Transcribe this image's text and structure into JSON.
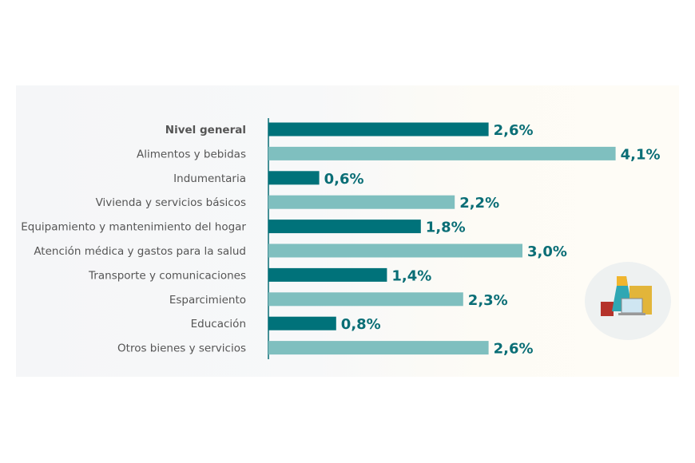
{
  "chart_data": {
    "type": "bar",
    "orientation": "horizontal",
    "categories": [
      "Nivel general",
      "Alimentos y bebidas",
      "Indumentaria",
      "Vivienda y servicios básicos",
      "Equipamiento y mantenimiento del hogar",
      "Atención médica y gastos para la salud",
      "Transporte y comunicaciones",
      "Esparcimiento",
      "Educación",
      "Otros bienes y servicios"
    ],
    "values": [
      2.6,
      4.1,
      0.6,
      2.2,
      1.8,
      3.0,
      1.4,
      2.3,
      0.8,
      2.6
    ],
    "value_labels": [
      "2,6%",
      "4,1%",
      "0,6%",
      "2,2%",
      "1,8%",
      "3,0%",
      "1,4%",
      "2,3%",
      "0,8%",
      "2,6%"
    ],
    "colors": [
      "#00727a",
      "#7fbfbf"
    ],
    "xlim": [
      0,
      4.1
    ],
    "grid": false
  },
  "icon": "shopping-illustration-icon"
}
